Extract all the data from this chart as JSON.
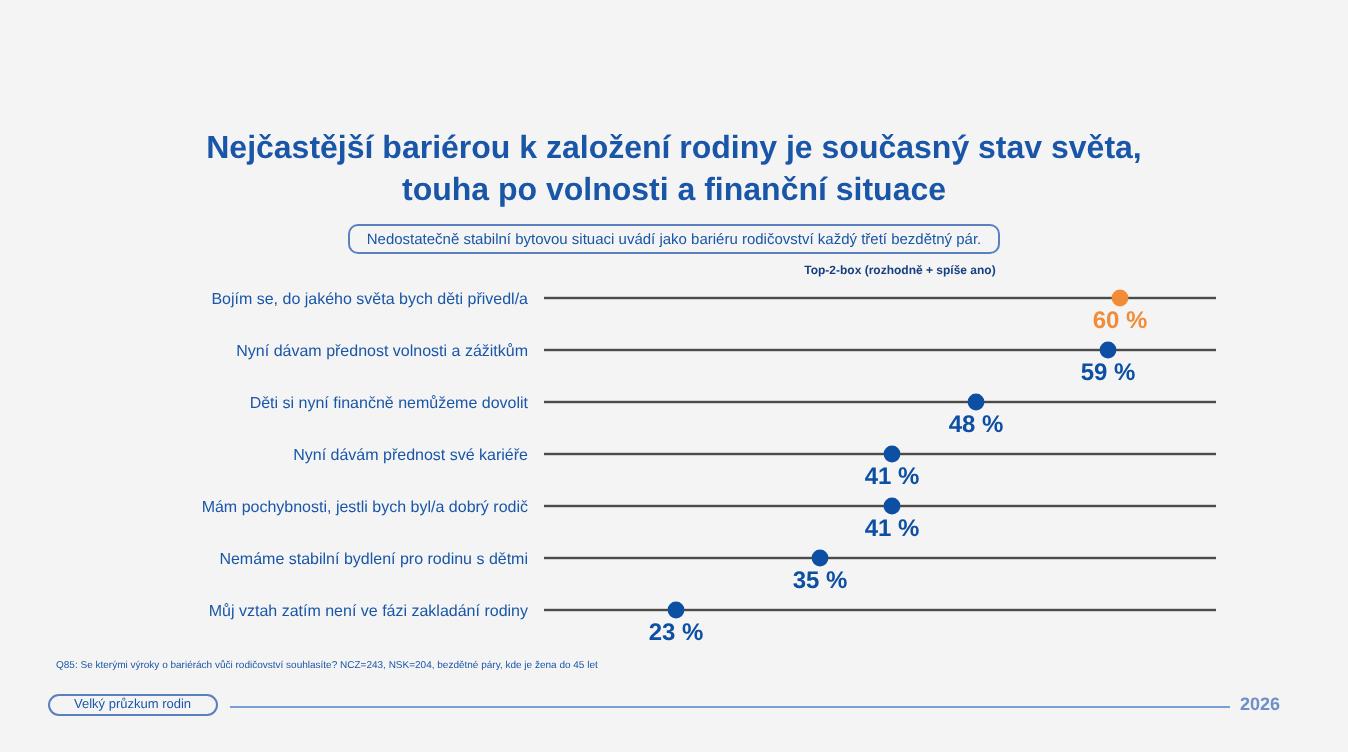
{
  "chart_data": {
    "type": "lollipop",
    "orientation": "horizontal",
    "title": "Nejčastější bariérou k založení rodiny je současný stav světa, touha po volnosti a finanční situace",
    "subtitle": "Nedostatečně stabilní bytovou situaci uvádí jako bariéru rodičovství každý třetí bezdětný pár.",
    "xlabel": "Top-2-box (rozhodně + spíše ano)",
    "categories": [
      "Bojím se, do jakého světa bych děti přivedl/a",
      "Nyní dávam přednost volnosti a zážitkům",
      "Děti si nyní finančně nemůžeme dovolit",
      "Nyní dávám přednost své kariéře",
      "Mám pochybnosti, jestli bych byl/a dobrý rodič",
      "Nemáme stabilní bydlení pro rodinu s dětmi",
      "Můj vztah zatím není ve fázi zakladání rodiny"
    ],
    "values": [
      60,
      59,
      48,
      41,
      41,
      35,
      23
    ],
    "value_labels": [
      "60 %",
      "59 %",
      "48 %",
      "41 %",
      "41 %",
      "35 %",
      "23 %"
    ],
    "colors": [
      "#f28c38",
      "#0d4fa3",
      "#0d4fa3",
      "#0d4fa3",
      "#0d4fa3",
      "#0d4fa3",
      "#0d4fa3"
    ],
    "xlim": [
      12,
      68
    ],
    "tick_labels": "y",
    "annotations": [
      "Q85: Se kterými výroky o bariérách vůči rodičovství souhlasíte? NCZ=243, NSK=204, bezdětné páry, kde je žena do 45 let",
      "Velký průzkum rodin",
      "2026"
    ]
  }
}
